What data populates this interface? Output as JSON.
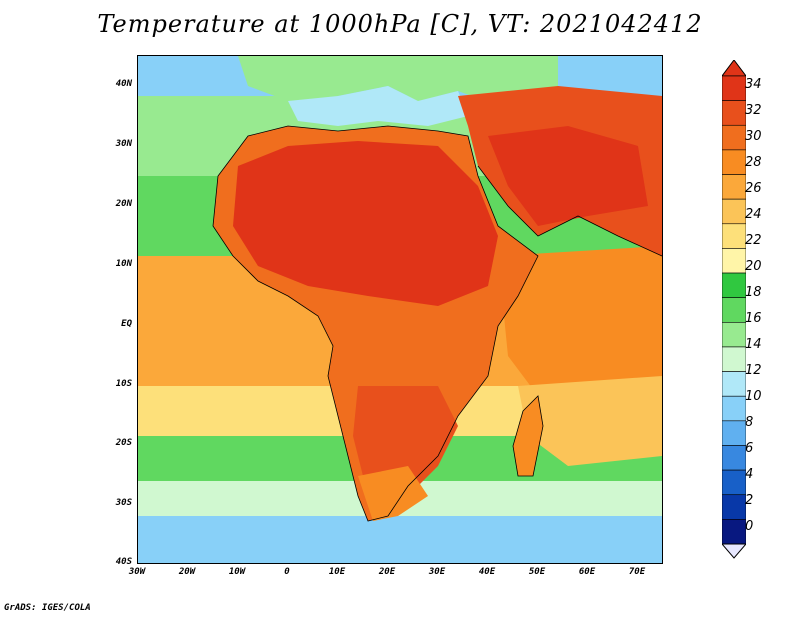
{
  "title": "Temperature at 1000hPa [C], VT: 2021042412",
  "credit": "GrADS: IGES/COLA",
  "map": {
    "projection": "latlon",
    "lon_range": [
      -30,
      75
    ],
    "lat_range": [
      -40,
      45
    ],
    "lat_ticks": [
      "40N",
      "30N",
      "20N",
      "10N",
      "EQ",
      "10S",
      "20S",
      "30S",
      "40S"
    ],
    "lon_ticks": [
      "30W",
      "20W",
      "10W",
      "0",
      "10E",
      "20E",
      "30E",
      "40E",
      "50E",
      "60E",
      "70E"
    ]
  },
  "colorbar": {
    "labels": [
      "34",
      "32",
      "30",
      "28",
      "26",
      "24",
      "22",
      "20",
      "18",
      "16",
      "14",
      "12",
      "10",
      "8",
      "6",
      "4",
      "2",
      "0"
    ],
    "colors": [
      "#e03418",
      "#e8501c",
      "#f06e1e",
      "#f88c22",
      "#fba83a",
      "#fbc458",
      "#fde07a",
      "#fff5a8",
      "#30c840",
      "#60d860",
      "#98ea90",
      "#d0f8d0",
      "#b0e8f8",
      "#88d0f8",
      "#60b0f0",
      "#3888e0",
      "#1860c8",
      "#0838a8",
      "#081880"
    ]
  }
}
